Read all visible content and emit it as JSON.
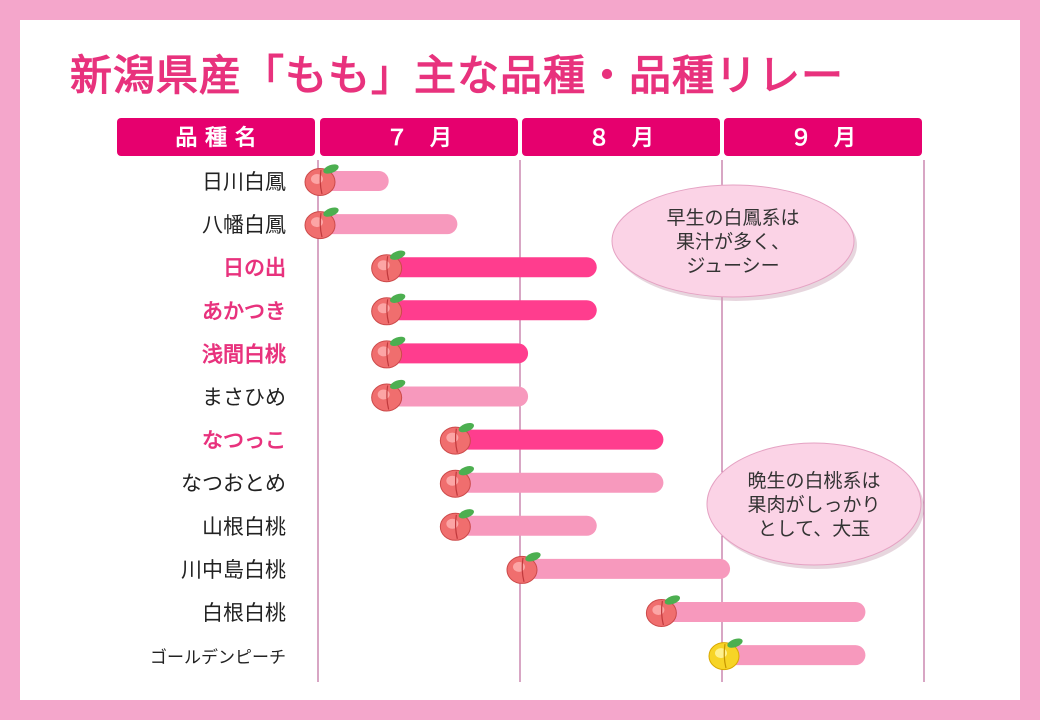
{
  "title": "新潟県産「もも」主な品種・品種リレー",
  "colors": {
    "border": "#f4a6cb",
    "accent": "#e8327d",
    "header_fill": "#e6006e",
    "bar_featured": "#ff3d8e",
    "bar_normal": "#f799bd",
    "label_featured": "#e8327d",
    "label_normal": "#222222",
    "note_fill": "#fbd3e6"
  },
  "chart_data": {
    "type": "gantt",
    "header": {
      "name_label": "品 種 名",
      "months": [
        "７　月",
        "８　月",
        "９　月"
      ]
    },
    "x_axis": {
      "unit": "month",
      "range": [
        7,
        10
      ]
    },
    "varieties": [
      {
        "name": "日川白鳳",
        "start": 7.0,
        "end": 7.35,
        "featured": false,
        "fruit": "peach-icon"
      },
      {
        "name": "八幡白鳳",
        "start": 7.0,
        "end": 7.69,
        "featured": false,
        "fruit": "peach-icon"
      },
      {
        "name": "日の出",
        "start": 7.33,
        "end": 8.38,
        "featured": true,
        "fruit": "peach-icon"
      },
      {
        "name": "あかつき",
        "start": 7.33,
        "end": 8.38,
        "featured": true,
        "fruit": "peach-icon"
      },
      {
        "name": "浅間白桃",
        "start": 7.33,
        "end": 8.04,
        "featured": true,
        "fruit": "peach-icon"
      },
      {
        "name": "まさひめ",
        "start": 7.33,
        "end": 8.04,
        "featured": false,
        "fruit": "peach-icon"
      },
      {
        "name": "なつっこ",
        "start": 7.67,
        "end": 8.71,
        "featured": true,
        "fruit": "peach-icon"
      },
      {
        "name": "なつおとめ",
        "start": 7.67,
        "end": 8.71,
        "featured": false,
        "fruit": "peach-icon"
      },
      {
        "name": "山根白桃",
        "start": 7.67,
        "end": 8.38,
        "featured": false,
        "fruit": "peach-icon"
      },
      {
        "name": "川中島白桃",
        "start": 8.0,
        "end": 9.04,
        "featured": false,
        "fruit": "peach-icon"
      },
      {
        "name": "白根白桃",
        "start": 8.69,
        "end": 9.71,
        "featured": false,
        "fruit": "peach-icon"
      },
      {
        "name": "ゴールデンピーチ",
        "start": 9.0,
        "end": 9.71,
        "featured": false,
        "fruit": "yellow-peach-icon"
      }
    ],
    "notes": [
      {
        "lines": [
          "早生の白鳳系は",
          "果汁が多く、",
          "ジューシー"
        ]
      },
      {
        "lines": [
          "晩生の白桃系は",
          "果肉がしっかり",
          "として、大玉"
        ]
      }
    ]
  }
}
